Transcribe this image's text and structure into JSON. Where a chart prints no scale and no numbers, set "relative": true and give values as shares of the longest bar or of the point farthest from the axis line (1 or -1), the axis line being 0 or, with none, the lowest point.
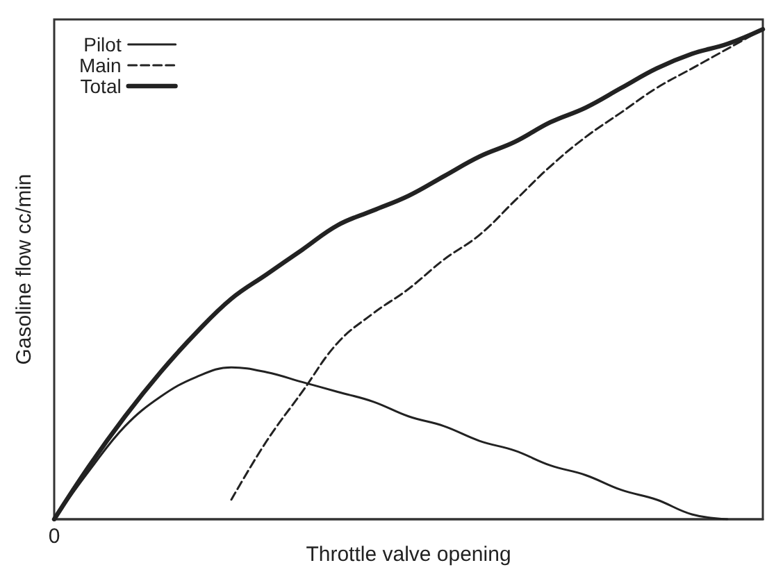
{
  "chart_data": {
    "type": "line",
    "relative": true,
    "xlabel": "Throttle valve opening",
    "ylabel": "Gasoline flow cc/min",
    "annotations": [
      "0"
    ],
    "categories": [
      null,
      null,
      null,
      null,
      null,
      null,
      null,
      null,
      null,
      null,
      null,
      null,
      null,
      null,
      null,
      null,
      null,
      null,
      null,
      null,
      null
    ],
    "series": [
      {
        "name": "Pilot",
        "color": "#222222",
        "line_style": "solid",
        "values": [
          0,
          0.1,
          0.19,
          0.25,
          0.29,
          0.31,
          0.3,
          0.28,
          0.26,
          0.24,
          0.21,
          0.19,
          0.16,
          0.14,
          0.11,
          0.09,
          0.06,
          0.04,
          0.01,
          0,
          null
        ]
      },
      {
        "name": "Main",
        "color": "#222222",
        "line_style": "dashed",
        "values": [
          null,
          null,
          null,
          null,
          null,
          0.04,
          0.16,
          0.26,
          0.36,
          0.42,
          0.47,
          0.53,
          0.58,
          0.65,
          0.72,
          0.78,
          0.83,
          0.88,
          0.92,
          0.96,
          1
        ]
      },
      {
        "name": "Total",
        "color": "#222222",
        "line_style": "solid",
        "values": [
          0,
          0.11,
          0.21,
          0.3,
          0.38,
          0.45,
          0.5,
          0.55,
          0.6,
          0.63,
          0.66,
          0.7,
          0.74,
          0.77,
          0.81,
          0.84,
          0.88,
          0.92,
          0.95,
          0.97,
          1
        ]
      }
    ],
    "grid": false,
    "legend": "top left",
    "marker": "none"
  }
}
